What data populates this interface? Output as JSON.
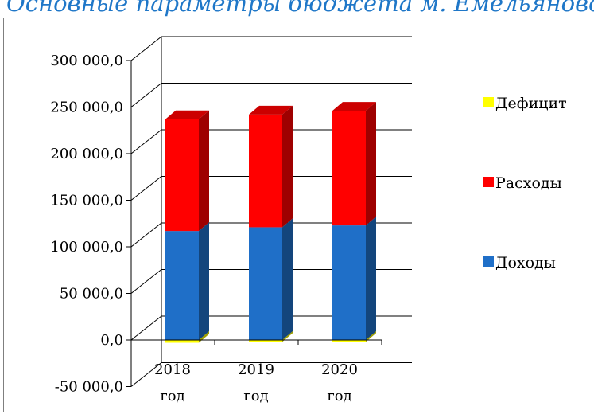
{
  "title": "Основные параметры бюджета м. Емельяново",
  "chart_data": {
    "type": "bar",
    "stacked": true,
    "three_d": true,
    "categories": [
      "2018 год",
      "2019 год",
      "2020 год"
    ],
    "series": [
      {
        "name": "Доходы",
        "color": "#1f6fc8",
        "values": [
          117000,
          121000,
          123000
        ]
      },
      {
        "name": "Расходы",
        "color": "#ff0000",
        "values": [
          120000,
          121000,
          123000
        ]
      },
      {
        "name": "Дефицит",
        "color": "#ffff00",
        "values": [
          -3000,
          -2000,
          -2000
        ]
      }
    ],
    "ylim": [
      -50000,
      300000
    ],
    "yticks": [
      -50000,
      0,
      50000,
      100000,
      150000,
      200000,
      250000,
      300000
    ],
    "ytick_labels": [
      "-50 000,0",
      "0,0",
      "50 000,0",
      "100 000,0",
      "150 000,0",
      "200 000,0",
      "250 000,0",
      "300 000,0"
    ],
    "legend_order": [
      "Дефицит",
      "Расходы",
      "Доходы"
    ],
    "legend_position": "right",
    "grid": true
  }
}
